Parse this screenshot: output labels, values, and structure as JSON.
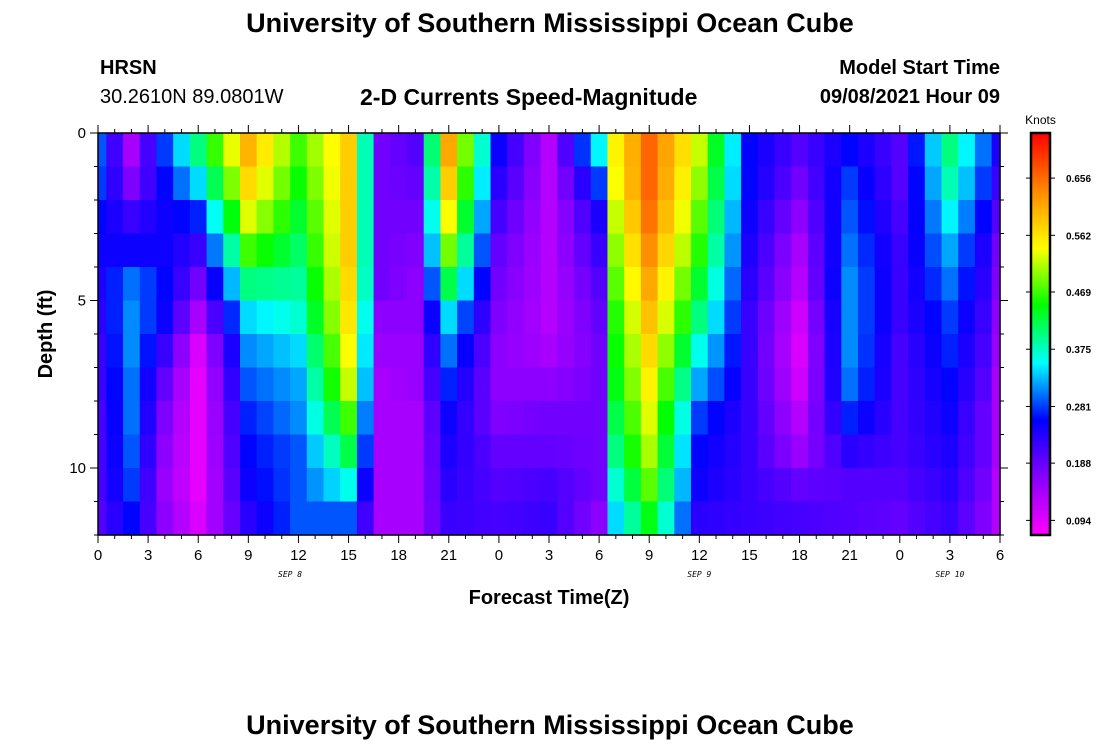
{
  "page": {
    "title_top": "University of Southern Mississippi Ocean Cube",
    "title_bottom": "University of Southern Mississippi Ocean Cube",
    "station": "HRSN",
    "coords": "30.2610N  89.0801W",
    "plot_title": "2-D Currents Speed-Magnitude",
    "model_start_label": "Model Start Time",
    "model_start_value": "09/08/2021 Hour 09"
  },
  "chart_data": {
    "type": "heatmap",
    "title": "2-D Currents Speed-Magnitude",
    "xlabel": "Forecast Time(Z)",
    "ylabel": "Depth (ft)",
    "x_tick_labels": [
      "0",
      "3",
      "6",
      "9",
      "12",
      "15",
      "18",
      "21",
      "0",
      "3",
      "6",
      "9",
      "12",
      "15",
      "18",
      "21",
      "0",
      "3",
      "6"
    ],
    "x_hours_from_start": [
      0,
      3,
      6,
      9,
      12,
      15,
      18,
      21,
      24,
      27,
      30,
      33,
      36,
      39,
      42,
      45,
      48,
      51,
      54
    ],
    "x_range_hours": [
      0,
      54
    ],
    "date_labels": [
      {
        "text": "SEP 8",
        "hour": 11.5
      },
      {
        "text": "SEP 9",
        "hour": 36
      },
      {
        "text": "SEP 10",
        "hour": 51
      }
    ],
    "y_tick_labels": [
      "0",
      "5",
      "10"
    ],
    "y_tick_values": [
      0,
      5,
      10
    ],
    "ylim": [
      0,
      12
    ],
    "colorbar": {
      "title": "Knots",
      "tick_labels": [
        "0.656",
        "0.562",
        "0.469",
        "0.375",
        "0.281",
        "0.188",
        "0.094"
      ],
      "tick_values": [
        0.656,
        0.562,
        0.469,
        0.375,
        0.281,
        0.188,
        0.094
      ],
      "range": [
        0.07,
        0.73
      ],
      "colormap": [
        "#ff00ff",
        "#8800ff",
        "#0000ff",
        "#00ffff",
        "#00ff00",
        "#ffff00",
        "#ff8800",
        "#ff0000"
      ]
    },
    "depth_levels_ft": [
      0.5,
      1.5,
      2.5,
      3.5,
      4.5,
      5.5,
      6.5,
      7.5,
      8.5,
      9.5,
      10.5,
      11.5
    ],
    "speed_profiles_knots": [
      {
        "hour": 0,
        "values": [
          0.29,
          0.28,
          0.26,
          0.25,
          0.24,
          0.23,
          0.22,
          0.22,
          0.21,
          0.21,
          0.21,
          0.2
        ]
      },
      {
        "hour": 2,
        "values": [
          0.14,
          0.17,
          0.22,
          0.25,
          0.3,
          0.31,
          0.31,
          0.3,
          0.3,
          0.29,
          0.28,
          0.26
        ]
      },
      {
        "hour": 4,
        "values": [
          0.28,
          0.26,
          0.25,
          0.25,
          0.26,
          0.25,
          0.22,
          0.19,
          0.17,
          0.16,
          0.15,
          0.16
        ]
      },
      {
        "hour": 6,
        "values": [
          0.4,
          0.34,
          0.27,
          0.22,
          0.18,
          0.14,
          0.1,
          0.09,
          0.09,
          0.09,
          0.09,
          0.1
        ]
      },
      {
        "hour": 9,
        "values": [
          0.6,
          0.57,
          0.53,
          0.47,
          0.4,
          0.34,
          0.31,
          0.29,
          0.27,
          0.26,
          0.25,
          0.23
        ]
      },
      {
        "hour": 12,
        "values": [
          0.47,
          0.45,
          0.43,
          0.41,
          0.39,
          0.37,
          0.34,
          0.32,
          0.31,
          0.29,
          0.29,
          0.29
        ]
      },
      {
        "hour": 15,
        "values": [
          0.58,
          0.58,
          0.58,
          0.58,
          0.57,
          0.56,
          0.54,
          0.52,
          0.47,
          0.42,
          0.36,
          0.29
        ]
      },
      {
        "hour": 17,
        "values": [
          0.18,
          0.18,
          0.18,
          0.18,
          0.18,
          0.16,
          0.15,
          0.14,
          0.14,
          0.14,
          0.14,
          0.14
        ]
      },
      {
        "hour": 19,
        "values": [
          0.2,
          0.19,
          0.18,
          0.17,
          0.16,
          0.16,
          0.15,
          0.15,
          0.14,
          0.14,
          0.14,
          0.14
        ]
      },
      {
        "hour": 21,
        "values": [
          0.61,
          0.58,
          0.54,
          0.49,
          0.42,
          0.34,
          0.3,
          0.27,
          0.25,
          0.24,
          0.23,
          0.22
        ]
      },
      {
        "hour": 24,
        "values": [
          0.25,
          0.23,
          0.21,
          0.19,
          0.18,
          0.17,
          0.16,
          0.16,
          0.17,
          0.19,
          0.2,
          0.21
        ]
      },
      {
        "hour": 27,
        "values": [
          0.13,
          0.13,
          0.13,
          0.13,
          0.13,
          0.13,
          0.14,
          0.16,
          0.18,
          0.19,
          0.21,
          0.22
        ]
      },
      {
        "hour": 30,
        "values": [
          0.35,
          0.28,
          0.24,
          0.22,
          0.2,
          0.19,
          0.18,
          0.18,
          0.18,
          0.18,
          0.18,
          0.16
        ]
      },
      {
        "hour": 31,
        "values": [
          0.55,
          0.54,
          0.52,
          0.5,
          0.48,
          0.46,
          0.45,
          0.44,
          0.42,
          0.4,
          0.37,
          0.34
        ]
      },
      {
        "hour": 33,
        "values": [
          0.66,
          0.66,
          0.65,
          0.63,
          0.61,
          0.59,
          0.57,
          0.55,
          0.53,
          0.51,
          0.48,
          0.44
        ]
      },
      {
        "hour": 36,
        "values": [
          0.52,
          0.5,
          0.48,
          0.46,
          0.43,
          0.4,
          0.36,
          0.32,
          0.28,
          0.26,
          0.25,
          0.23
        ]
      },
      {
        "hour": 39,
        "values": [
          0.26,
          0.26,
          0.25,
          0.24,
          0.23,
          0.22,
          0.22,
          0.22,
          0.22,
          0.22,
          0.22,
          0.22
        ]
      },
      {
        "hour": 42,
        "values": [
          0.2,
          0.18,
          0.16,
          0.14,
          0.13,
          0.11,
          0.1,
          0.11,
          0.13,
          0.15,
          0.19,
          0.21
        ]
      },
      {
        "hour": 45,
        "values": [
          0.26,
          0.28,
          0.29,
          0.3,
          0.31,
          0.31,
          0.31,
          0.3,
          0.27,
          0.23,
          0.2,
          0.2
        ]
      },
      {
        "hour": 48,
        "values": [
          0.2,
          0.2,
          0.21,
          0.22,
          0.22,
          0.22,
          0.21,
          0.21,
          0.21,
          0.21,
          0.2,
          0.19
        ]
      },
      {
        "hour": 51,
        "values": [
          0.4,
          0.38,
          0.35,
          0.32,
          0.3,
          0.28,
          0.27,
          0.26,
          0.25,
          0.24,
          0.23,
          0.22
        ]
      },
      {
        "hour": 53,
        "values": [
          0.3,
          0.28,
          0.26,
          0.24,
          0.23,
          0.22,
          0.21,
          0.2,
          0.19,
          0.19,
          0.18,
          0.17
        ]
      },
      {
        "hour": 54,
        "values": [
          0.24,
          0.22,
          0.2,
          0.18,
          0.17,
          0.16,
          0.15,
          0.14,
          0.14,
          0.14,
          0.13,
          0.13
        ]
      }
    ]
  }
}
